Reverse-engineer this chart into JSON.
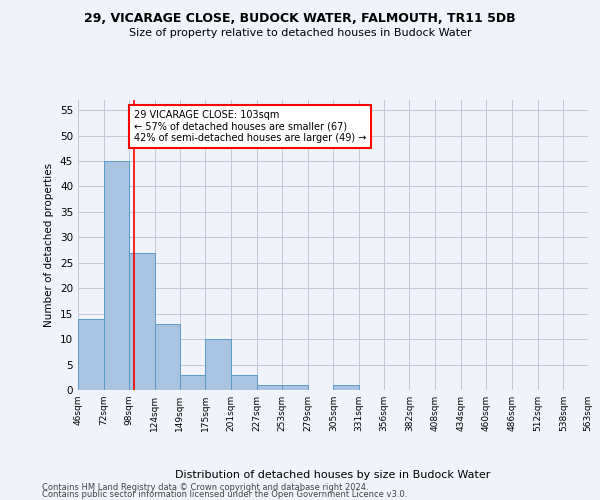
{
  "title": "29, VICARAGE CLOSE, BUDOCK WATER, FALMOUTH, TR11 5DB",
  "subtitle": "Size of property relative to detached houses in Budock Water",
  "xlabel": "Distribution of detached houses by size in Budock Water",
  "ylabel": "Number of detached properties",
  "footnote1": "Contains HM Land Registry data © Crown copyright and database right 2024.",
  "footnote2": "Contains public sector information licensed under the Open Government Licence v3.0.",
  "bin_edges": [
    46,
    72,
    98,
    124,
    149,
    175,
    201,
    227,
    253,
    279,
    305,
    331,
    356,
    382,
    408,
    434,
    460,
    486,
    512,
    538,
    563
  ],
  "bin_labels": [
    "46sqm",
    "72sqm",
    "98sqm",
    "124sqm",
    "149sqm",
    "175sqm",
    "201sqm",
    "227sqm",
    "253sqm",
    "279sqm",
    "305sqm",
    "331sqm",
    "356sqm",
    "382sqm",
    "408sqm",
    "434sqm",
    "460sqm",
    "486sqm",
    "512sqm",
    "538sqm",
    "563sqm"
  ],
  "counts": [
    14,
    45,
    27,
    13,
    3,
    10,
    3,
    1,
    1,
    0,
    1,
    0,
    0,
    0,
    0,
    0,
    0,
    0,
    0,
    0
  ],
  "bar_color": "#a8c4e0",
  "bar_edgecolor": "#5a9ac8",
  "vline_x": 103,
  "vline_color": "red",
  "ylim": [
    0,
    57
  ],
  "yticks": [
    0,
    5,
    10,
    15,
    20,
    25,
    30,
    35,
    40,
    45,
    50,
    55
  ],
  "annotation_text": "29 VICARAGE CLOSE: 103sqm\n← 57% of detached houses are smaller (67)\n42% of semi-detached houses are larger (49) →",
  "annotation_box_color": "white",
  "annotation_box_edgecolor": "red",
  "background_color": "#f0f4fa",
  "grid_color": "#c0c8d8"
}
